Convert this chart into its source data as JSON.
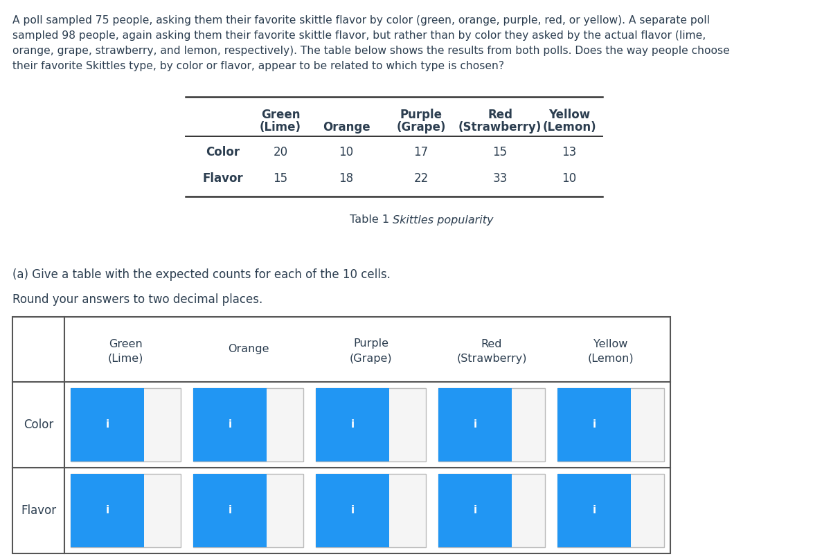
{
  "paragraph_lines": [
    "A poll sampled 75 people, asking them their favorite skittle flavor by color (green, orange, purple, red, or yellow). A separate poll",
    "sampled 98 people, again asking them their favorite skittle flavor, but rather than by color they asked by the actual flavor (lime,",
    "orange, grape, strawberry, and lemon, respectively). The table below shows the results from both polls. Does the way people choose",
    "their favorite Skittles type, by color or flavor, appear to be related to which type is chosen?"
  ],
  "table1_headers1": [
    "Green",
    "",
    "Purple",
    "Red",
    "Yellow"
  ],
  "table1_headers2": [
    "(Lime)",
    "Orange",
    "(Grape)",
    "(Strawberry)",
    "(Lemon)"
  ],
  "table1_rows": [
    "Color",
    "Flavor"
  ],
  "table1_data": [
    [
      20,
      10,
      17,
      15,
      13
    ],
    [
      15,
      18,
      22,
      33,
      10
    ]
  ],
  "table1_caption_plain": "Table 1 ",
  "table1_caption_italic": "Skittles popularity",
  "part_a": "(a) Give a table with the expected counts for each of the 10 cells.",
  "round_note": "Round your answers to two decimal places.",
  "table2_headers1": [
    "Green",
    "Orange",
    "Purple",
    "Red",
    "Yellow"
  ],
  "table2_headers2": [
    "(Lime)",
    "",
    "(Grape)",
    "(Strawberry)",
    "(Lemon)"
  ],
  "table2_rows": [
    "Color",
    "Flavor"
  ],
  "text_color": "#2c3e50",
  "line_color": "#333333",
  "border_color": "#555555",
  "btn_color": "#2196F3",
  "box_fill": "#f5f5f5",
  "box_border": "#bbbbbb",
  "bg_color": "#ffffff",
  "fs_para": 11.2,
  "fs_table1": 12.0,
  "fs_table2": 11.5,
  "fs_btn": 11
}
